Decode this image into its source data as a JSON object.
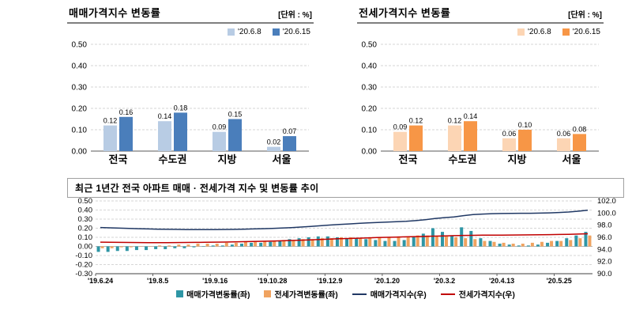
{
  "sale_panel": {
    "title": "매매가격지수 변동률",
    "unit": "[단위 : %]",
    "legend": [
      "'20.6.8",
      "'20.6.15"
    ],
    "colors": [
      "#b8cce4",
      "#4a7ebb"
    ]
  },
  "jeonse_panel": {
    "title": "전세가격지수 변동률",
    "unit": "[단위 : %]",
    "legend": [
      "'20.6.8",
      "'20.6.15"
    ],
    "colors": [
      "#fcd5b4",
      "#f79646"
    ]
  },
  "trend_panel": {
    "title": "최근 1년간 전국 아파트 매매 · 전세가격 지수 및 변동률 추이",
    "legend": [
      {
        "label": "매매가격변동률(좌)",
        "color": "#2e96a5",
        "type": "bar"
      },
      {
        "label": "전세가격변동률(좌)",
        "color": "#f0a360",
        "type": "bar"
      },
      {
        "label": "매매가격지수(우)",
        "color": "#203864",
        "type": "line"
      },
      {
        "label": "전세가격지수(우)",
        "color": "#c00000",
        "type": "line"
      }
    ]
  },
  "chart_data": [
    {
      "id": "sale",
      "type": "bar",
      "title": "매매가격지수 변동률",
      "categories": [
        "전국",
        "수도권",
        "지방",
        "서울"
      ],
      "series": [
        {
          "name": "'20.6.8",
          "values": [
            0.12,
            0.14,
            0.09,
            0.02
          ]
        },
        {
          "name": "'20.6.15",
          "values": [
            0.16,
            0.18,
            0.15,
            0.07
          ]
        }
      ],
      "ylim": [
        0,
        0.5
      ],
      "yticks": [
        0.5,
        0.4,
        0.3,
        0.2,
        0.1,
        0
      ],
      "unit": "%",
      "legend_position": "top-right",
      "grid": true
    },
    {
      "id": "jeonse",
      "type": "bar",
      "title": "전세가격지수 변동률",
      "categories": [
        "전국",
        "수도권",
        "지방",
        "서울"
      ],
      "series": [
        {
          "name": "'20.6.8",
          "values": [
            0.09,
            0.12,
            0.06,
            0.06
          ]
        },
        {
          "name": "'20.6.15",
          "values": [
            0.12,
            0.14,
            0.1,
            0.08
          ]
        }
      ],
      "ylim": [
        0,
        0.5
      ],
      "yticks": [
        0.5,
        0.4,
        0.3,
        0.2,
        0.1,
        0
      ],
      "unit": "%",
      "legend_position": "top-right",
      "grid": true
    },
    {
      "id": "trend",
      "type": "combo",
      "title": "최근 1년간 전국 아파트 매매 · 전세가격 지수 및 변동률 추이",
      "x_tick_idx": [
        0,
        6,
        12,
        18,
        24,
        30,
        36,
        42,
        48
      ],
      "x_tick_labels": [
        "'19.6.24",
        "'19.8.5",
        "'19.9.16",
        "'19.10.28",
        "'19.12.9",
        "'20.1.20",
        "'20.3.2",
        "'20.4.13",
        "'20.5.25"
      ],
      "ylim_left": [
        -0.3,
        0.5
      ],
      "ylim_right": [
        90,
        102
      ],
      "yticks_left": [
        0.5,
        0.4,
        0.3,
        0.2,
        0.1,
        0,
        -0.1,
        -0.2,
        -0.3
      ],
      "yticks_right": [
        102,
        100,
        98,
        96,
        94,
        92,
        90
      ],
      "grid": true,
      "legend_position": "bottom",
      "bar_series": [
        {
          "name": "매매가격변동률(좌)",
          "color": "#2e96a5",
          "values": [
            -0.06,
            -0.06,
            -0.05,
            -0.05,
            -0.04,
            -0.04,
            -0.03,
            -0.03,
            -0.02,
            -0.02,
            -0.01,
            0.0,
            0.01,
            0.01,
            0.02,
            0.03,
            0.04,
            0.04,
            0.05,
            0.06,
            0.08,
            0.09,
            0.1,
            0.11,
            0.11,
            0.1,
            0.09,
            0.09,
            0.08,
            0.07,
            0.06,
            0.06,
            0.07,
            0.11,
            0.14,
            0.2,
            0.16,
            0.12,
            0.21,
            0.17,
            0.09,
            0.06,
            0.03,
            0.02,
            0.01,
            0.01,
            0.02,
            0.04,
            0.06,
            0.09,
            0.12,
            0.16
          ]
        },
        {
          "name": "전세가격변동률(좌)",
          "color": "#f0a360",
          "values": [
            -0.02,
            -0.02,
            -0.01,
            -0.01,
            0.0,
            0.0,
            0.01,
            0.01,
            0.02,
            0.02,
            0.03,
            0.03,
            0.03,
            0.04,
            0.04,
            0.05,
            0.05,
            0.06,
            0.06,
            0.07,
            0.07,
            0.08,
            0.08,
            0.09,
            0.09,
            0.1,
            0.1,
            0.09,
            0.09,
            0.1,
            0.1,
            0.11,
            0.11,
            0.12,
            0.12,
            0.11,
            0.11,
            0.1,
            0.09,
            0.08,
            0.06,
            0.05,
            0.04,
            0.03,
            0.03,
            0.04,
            0.05,
            0.06,
            0.06,
            0.07,
            0.09,
            0.12
          ]
        }
      ],
      "line_series": [
        {
          "name": "매매가격지수(우)",
          "color": "#203864",
          "values": [
            97.62,
            97.56,
            97.51,
            97.46,
            97.42,
            97.38,
            97.35,
            97.32,
            97.3,
            97.28,
            97.27,
            97.27,
            97.28,
            97.29,
            97.31,
            97.34,
            97.38,
            97.42,
            97.47,
            97.53,
            97.61,
            97.7,
            97.8,
            97.91,
            98.02,
            98.12,
            98.21,
            98.3,
            98.38,
            98.45,
            98.51,
            98.57,
            98.64,
            98.75,
            98.89,
            99.09,
            99.25,
            99.37,
            99.58,
            99.75,
            99.84,
            99.9,
            99.93,
            99.95,
            99.96,
            99.97,
            99.99,
            100.03,
            100.09,
            100.18,
            100.3,
            100.46
          ]
        },
        {
          "name": "전세가격지수(우)",
          "color": "#c00000",
          "values": [
            95.2,
            95.18,
            95.16,
            95.15,
            95.14,
            95.13,
            95.13,
            95.13,
            95.14,
            95.15,
            95.16,
            95.18,
            95.2,
            95.22,
            95.25,
            95.28,
            95.31,
            95.35,
            95.39,
            95.43,
            95.48,
            95.53,
            95.58,
            95.64,
            95.7,
            95.76,
            95.81,
            95.86,
            95.91,
            95.96,
            96.0,
            96.04,
            96.08,
            96.12,
            96.16,
            96.2,
            96.24,
            96.28,
            96.31,
            96.33,
            96.35,
            96.36,
            96.37,
            96.38,
            96.39,
            96.4,
            96.42,
            96.44,
            96.47,
            96.5,
            96.54,
            96.59
          ]
        }
      ]
    }
  ]
}
